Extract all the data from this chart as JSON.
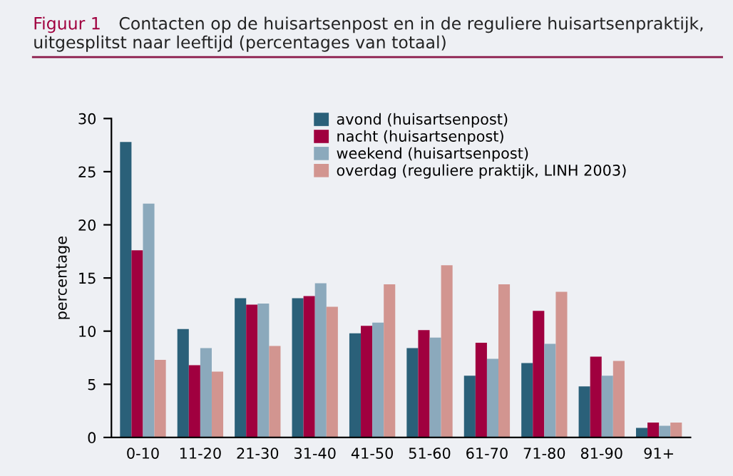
{
  "chart_data": {
    "type": "bar",
    "title": "Figuur 1",
    "subtitle": "Contacten op de huisartsenpost en in de reguliere huisartsenpraktijk, uitgesplitst naar leeftijd (percentages van totaal)",
    "ylabel": "percentage",
    "categories": [
      "0-10",
      "11-20",
      "21-30",
      "31-40",
      "41-50",
      "51-60",
      "61-70",
      "71-80",
      "81-90",
      "91+"
    ],
    "series": [
      {
        "name": "avond (huisartsenpost)",
        "color": "#2a6079",
        "values": [
          27.8,
          10.2,
          13.1,
          13.1,
          9.8,
          8.4,
          5.8,
          7.0,
          4.8,
          0.9
        ]
      },
      {
        "name": "nacht (huisartsenpost)",
        "color": "#a0003f",
        "values": [
          17.6,
          6.8,
          12.5,
          13.3,
          10.5,
          10.1,
          8.9,
          11.9,
          7.6,
          1.4
        ]
      },
      {
        "name": "weekend (huisartsenpost)",
        "color": "#8ba9bc",
        "values": [
          22.0,
          8.4,
          12.6,
          14.5,
          10.8,
          9.4,
          7.4,
          8.8,
          5.8,
          1.1
        ]
      },
      {
        "name": "overdag (reguliere praktijk, LINH 2003)",
        "color": "#d29590",
        "values": [
          7.3,
          6.2,
          8.6,
          12.3,
          14.4,
          16.2,
          14.4,
          13.7,
          7.2,
          1.4
        ]
      }
    ],
    "ylim": [
      0,
      30
    ],
    "yticks": [
      0,
      5,
      10,
      15,
      20,
      25,
      30
    ],
    "grid": false,
    "legend": "top"
  }
}
